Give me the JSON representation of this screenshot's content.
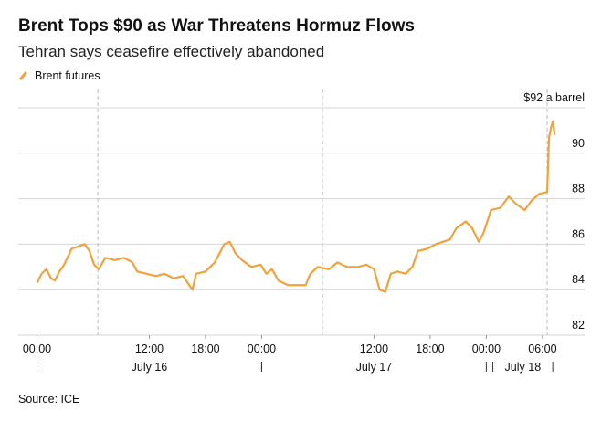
{
  "chart_data": {
    "type": "line",
    "title": "Brent Tops $90 as War Threatens Hormuz Flows",
    "subtitle": "Tehran says ceasefire effectively abandoned",
    "source": "Source: ICE",
    "grid": true,
    "legend": "top-left",
    "xlim": [
      -2,
      58.5
    ],
    "ylim": [
      82,
      92
    ],
    "yticks": [
      82,
      84,
      86,
      88,
      90,
      {
        "value": 92,
        "label": "$92 a barrel"
      }
    ],
    "xticks": [
      {
        "value": 0,
        "label": "00:00"
      },
      {
        "value": 12,
        "label": "12:00"
      },
      {
        "value": 18,
        "label": "18:00"
      },
      {
        "value": 24,
        "label": "00:00"
      },
      {
        "value": 36,
        "label": "12:00"
      },
      {
        "value": 42,
        "label": "18:00"
      },
      {
        "value": 48,
        "label": "00:00"
      },
      {
        "value": 54,
        "label": "06:00"
      }
    ],
    "day_labels": [
      {
        "label": "July 16",
        "start": 0,
        "end": 24
      },
      {
        "label": "July 17",
        "start": 24,
        "end": 48
      },
      {
        "label": "July 18",
        "start": 48.7,
        "end": 55.1
      }
    ],
    "reference_lines_x": [
      6.5,
      30.5,
      54.5
    ],
    "x": [
      0,
      0.5,
      1.0,
      1.5,
      1.9,
      2.4,
      2.9,
      3.7,
      4.4,
      5.1,
      5.6,
      6.1,
      6.6,
      7.3,
      8.3,
      9.3,
      10.2,
      10.7,
      11.7,
      12.7,
      13.6,
      14.6,
      15.6,
      16.6,
      17.0,
      18.0,
      19.0,
      20.0,
      20.6,
      21.2,
      21.9,
      22.9,
      23.9,
      24.5,
      25.1,
      25.8,
      26.8,
      27.8,
      28.7,
      29.2,
      30.0,
      31.2,
      32.1,
      33.1,
      34.3,
      35.2,
      36.0,
      36.6,
      37.2,
      37.8,
      38.5,
      39.4,
      40.1,
      40.7,
      41.7,
      42.6,
      43.3,
      44.1,
      44.8,
      45.8,
      46.5,
      47.2,
      47.7,
      48.5,
      49.5,
      50.4,
      51.1,
      52.1,
      52.8,
      53.6,
      54.5,
      54.7,
      54.9,
      55.1,
      55.3
    ],
    "series": [
      {
        "name": "Brent futures",
        "color": "#f0a23c",
        "values": [
          84.3,
          84.7,
          84.9,
          84.5,
          84.4,
          84.8,
          85.1,
          85.8,
          85.9,
          86.0,
          85.7,
          85.1,
          84.9,
          85.4,
          85.3,
          85.4,
          85.2,
          84.8,
          84.7,
          84.6,
          84.7,
          84.5,
          84.6,
          84.0,
          84.7,
          84.8,
          85.2,
          86.0,
          86.1,
          85.6,
          85.3,
          85.0,
          85.1,
          84.7,
          84.9,
          84.4,
          84.2,
          84.2,
          84.2,
          84.7,
          85.0,
          84.9,
          85.2,
          85.0,
          85.0,
          85.1,
          84.9,
          84.0,
          83.9,
          84.7,
          84.8,
          84.7,
          85.0,
          85.7,
          85.8,
          86.0,
          86.1,
          86.2,
          86.7,
          87.0,
          86.7,
          86.1,
          86.5,
          87.5,
          87.6,
          88.1,
          87.8,
          87.5,
          87.9,
          88.2,
          88.3,
          90.7,
          91.1,
          91.4,
          90.8
        ]
      }
    ]
  }
}
